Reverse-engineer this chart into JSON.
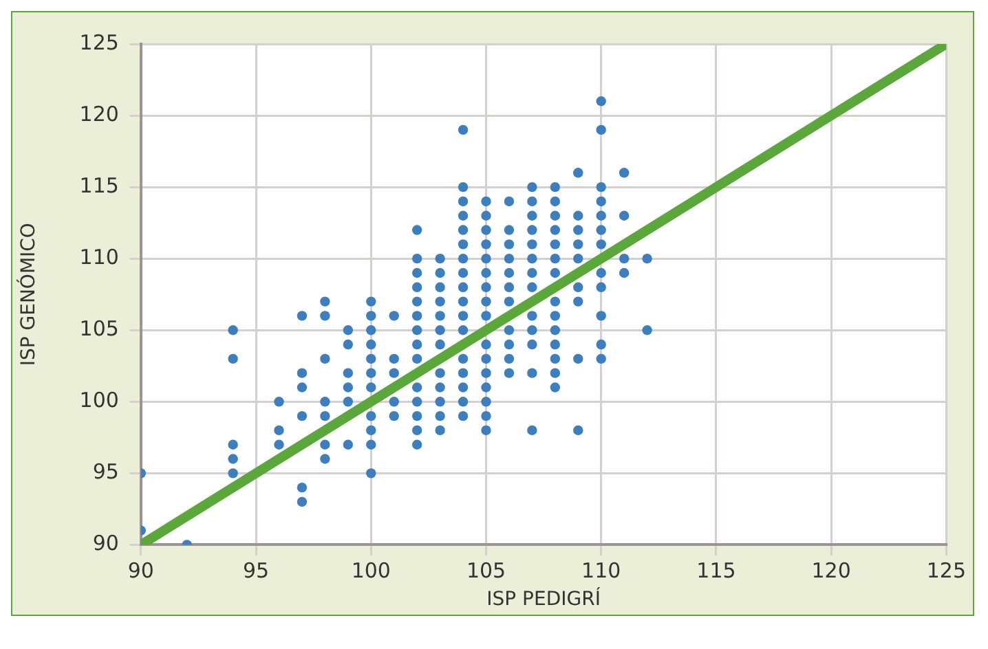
{
  "chart_data": {
    "type": "scatter",
    "xlabel": "ISP PEDIGRÍ",
    "ylabel": "ISP GENÓMICO",
    "xlim": [
      90,
      125
    ],
    "ylim": [
      90,
      125
    ],
    "xticks": [
      90,
      95,
      100,
      105,
      110,
      115,
      120,
      125
    ],
    "yticks": [
      90,
      95,
      100,
      105,
      110,
      115,
      120,
      125
    ],
    "grid": true,
    "marker": "circle",
    "series": [
      {
        "color": "#3b7fc0",
        "x": [
          90,
          90,
          90,
          92,
          94,
          94,
          94,
          94,
          94,
          96,
          96,
          96,
          97,
          97,
          97,
          97,
          97,
          97,
          98,
          98,
          98,
          98,
          98,
          98,
          98,
          99,
          99,
          99,
          99,
          99,
          99,
          100,
          100,
          100,
          100,
          100,
          100,
          100,
          100,
          100,
          100,
          100,
          101,
          101,
          101,
          101,
          101,
          102,
          102,
          102,
          102,
          102,
          102,
          102,
          102,
          102,
          102,
          102,
          102,
          102,
          102,
          103,
          103,
          103,
          103,
          103,
          103,
          103,
          103,
          103,
          103,
          103,
          103,
          104,
          104,
          104,
          104,
          104,
          104,
          104,
          104,
          104,
          104,
          104,
          104,
          104,
          104,
          104,
          104,
          104,
          105,
          105,
          105,
          105,
          105,
          105,
          105,
          105,
          105,
          105,
          105,
          105,
          105,
          105,
          105,
          105,
          106,
          106,
          106,
          106,
          106,
          106,
          106,
          106,
          106,
          106,
          106,
          107,
          107,
          107,
          107,
          107,
          107,
          107,
          107,
          107,
          107,
          107,
          107,
          107,
          108,
          108,
          108,
          108,
          108,
          108,
          108,
          108,
          108,
          108,
          108,
          108,
          108,
          108,
          109,
          109,
          109,
          109,
          109,
          109,
          109,
          109,
          109,
          110,
          110,
          110,
          110,
          110,
          110,
          110,
          110,
          110,
          110,
          110,
          110,
          111,
          111,
          111,
          111,
          112,
          112
        ],
        "values": [
          95,
          91,
          90,
          90,
          105,
          103,
          97,
          96,
          95,
          100,
          98,
          97,
          106,
          102,
          101,
          99,
          94,
          93,
          107,
          106,
          103,
          100,
          99,
          97,
          96,
          105,
          104,
          102,
          101,
          100,
          97,
          107,
          106,
          105,
          104,
          103,
          102,
          101,
          99,
          98,
          97,
          95,
          106,
          103,
          102,
          100,
          99,
          112,
          110,
          109,
          108,
          107,
          106,
          105,
          104,
          103,
          101,
          100,
          99,
          98,
          97,
          110,
          109,
          108,
          107,
          106,
          105,
          104,
          102,
          101,
          100,
          99,
          98,
          119,
          115,
          114,
          113,
          112,
          111,
          110,
          109,
          108,
          107,
          106,
          105,
          103,
          102,
          101,
          100,
          99,
          114,
          113,
          112,
          111,
          110,
          109,
          108,
          107,
          106,
          104,
          103,
          102,
          101,
          100,
          99,
          98,
          114,
          112,
          111,
          110,
          109,
          108,
          107,
          105,
          104,
          103,
          102,
          115,
          114,
          113,
          112,
          111,
          110,
          109,
          108,
          106,
          105,
          104,
          102,
          98,
          115,
          114,
          113,
          112,
          111,
          110,
          109,
          107,
          106,
          105,
          104,
          103,
          102,
          101,
          116,
          113,
          112,
          111,
          110,
          108,
          107,
          103,
          98,
          121,
          119,
          115,
          114,
          113,
          112,
          111,
          109,
          108,
          106,
          104,
          103,
          116,
          113,
          110,
          109,
          110,
          105
        ]
      },
      {
        "type": "line",
        "color": "#5aa83a",
        "marker": "none",
        "x": [
          90,
          125
        ],
        "values": [
          90,
          125
        ]
      }
    ]
  }
}
